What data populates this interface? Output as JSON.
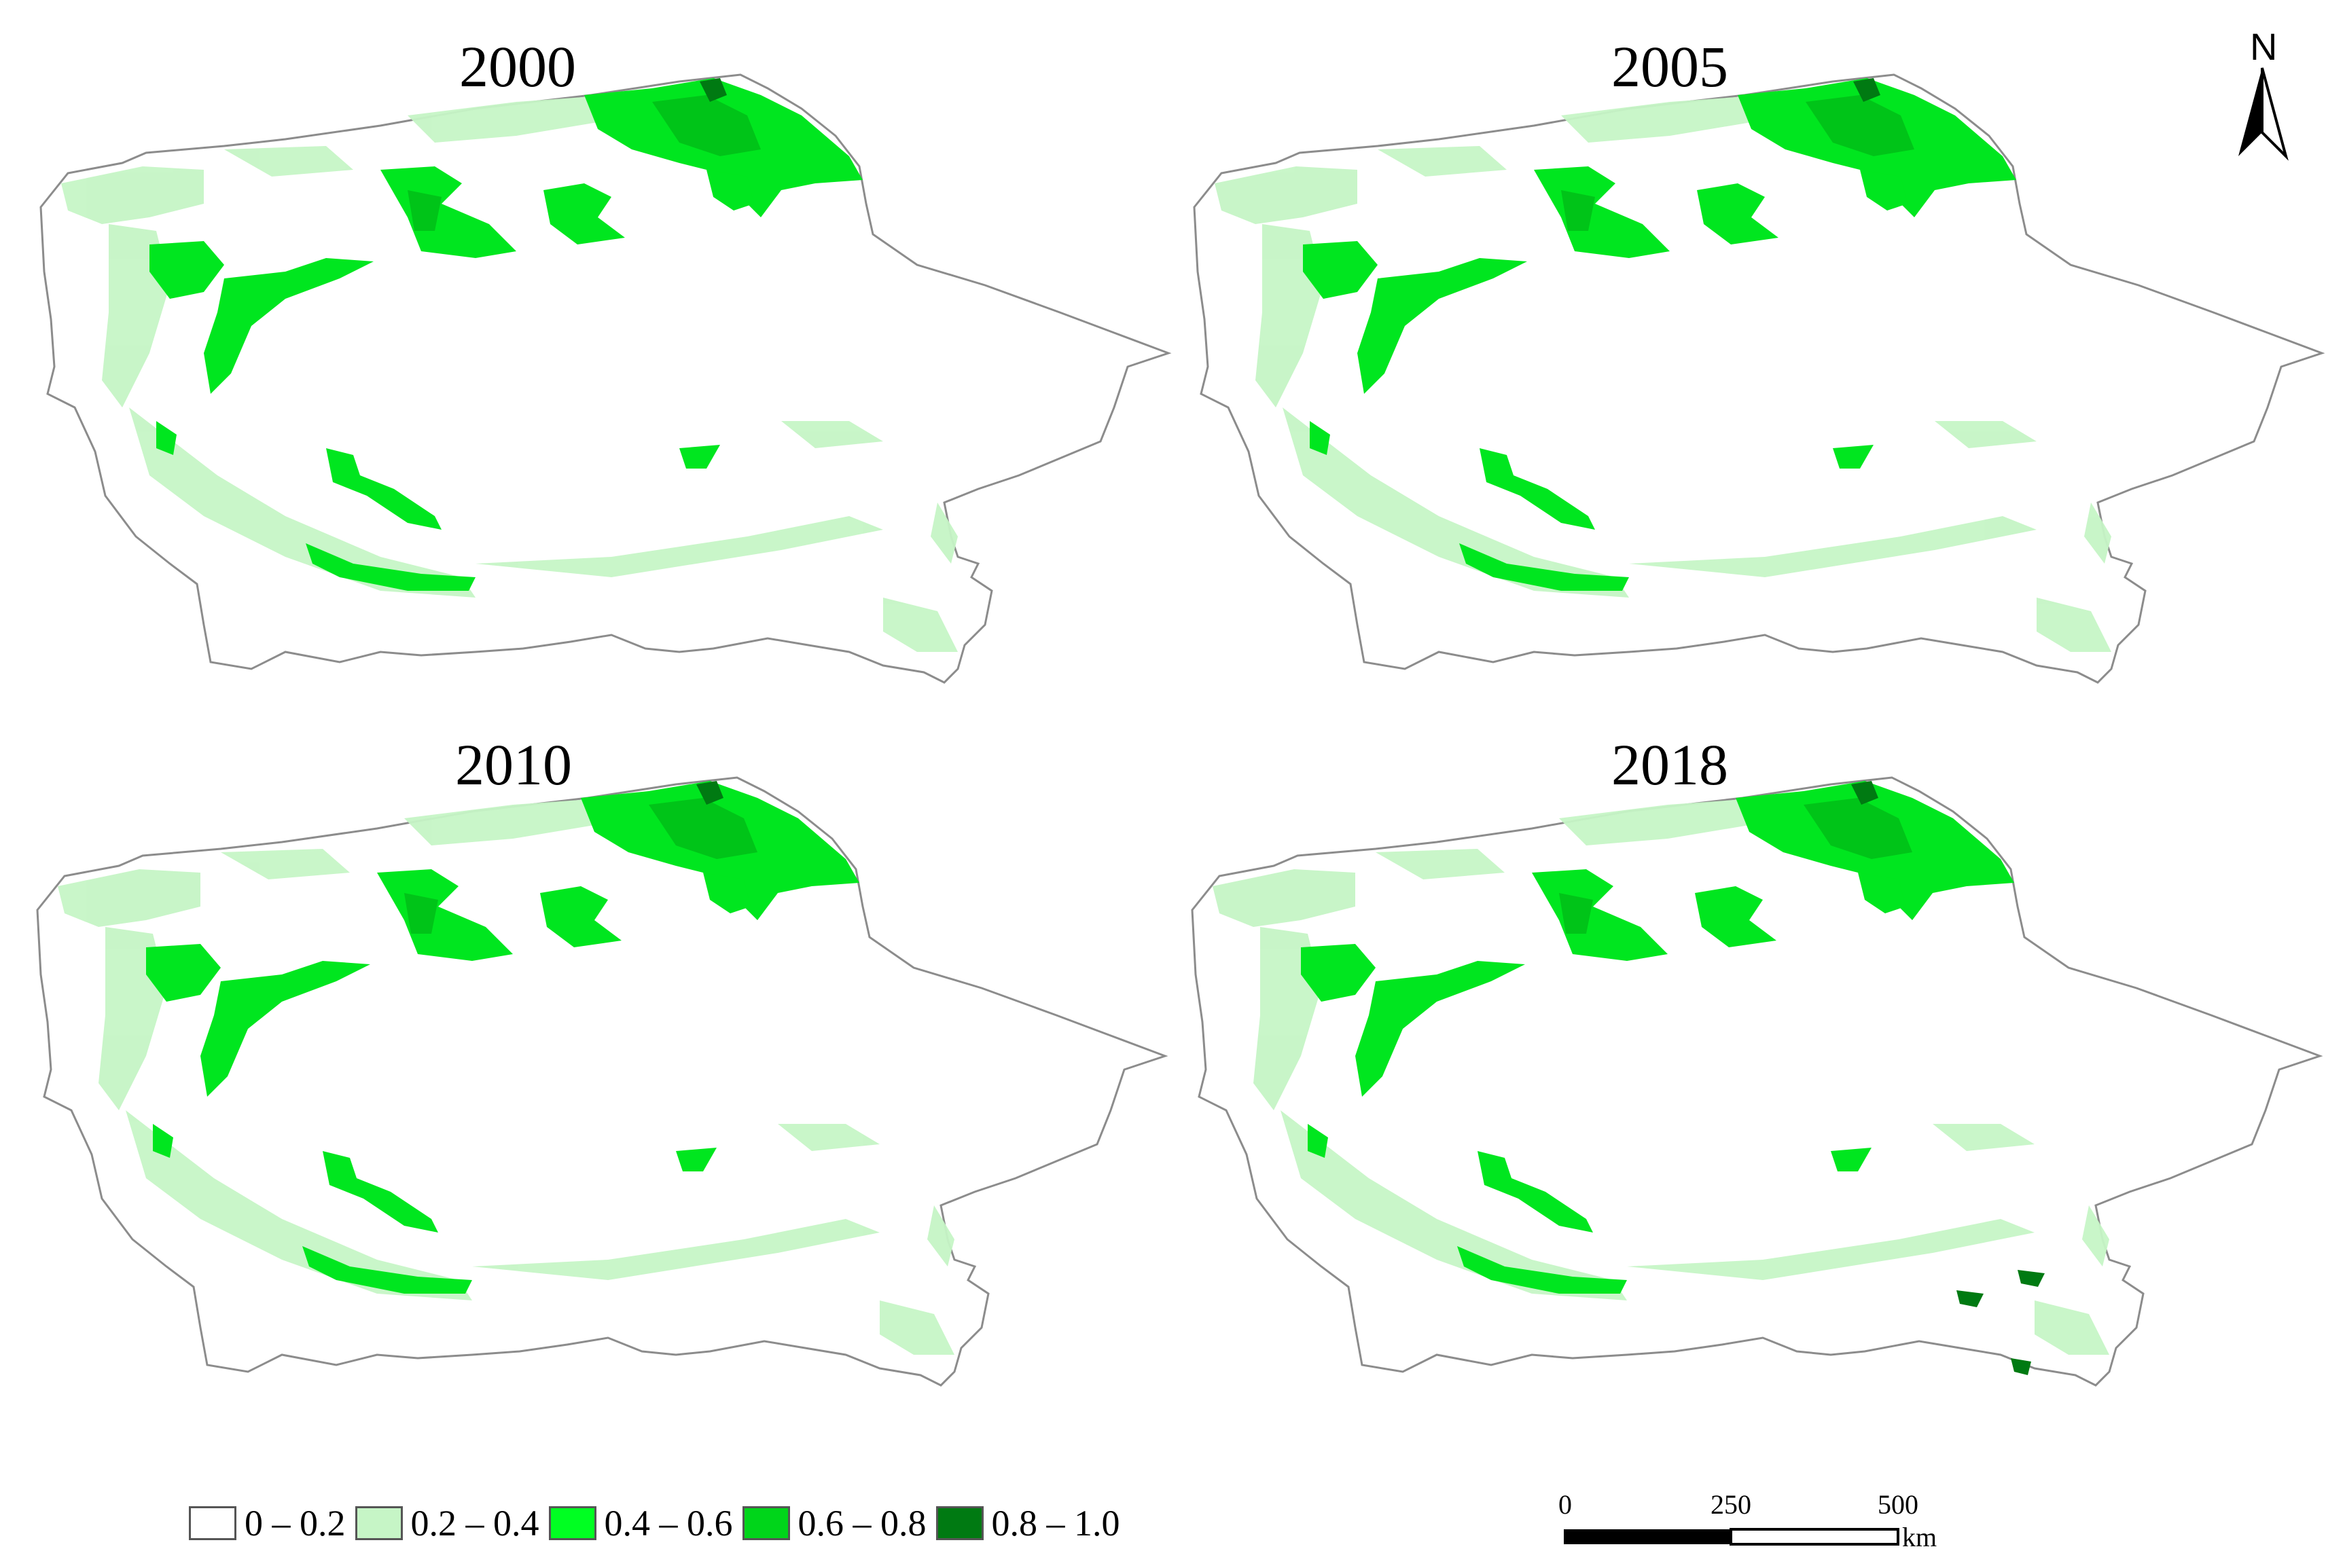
{
  "panels": [
    {
      "year": "2000"
    },
    {
      "year": "2005"
    },
    {
      "year": "2010"
    },
    {
      "year": "2018"
    }
  ],
  "legend": {
    "items": [
      {
        "label": "0 – 0.2",
        "color": "#ffffff"
      },
      {
        "label": "0.2 – 0.4",
        "color": "#c6f5c6"
      },
      {
        "label": "0.4 – 0.6",
        "color": "#00ff22"
      },
      {
        "label": "0.6 – 0.8",
        "color": "#00d51a"
      },
      {
        "label": "0.8 – 1.0",
        "color": "#007a12"
      }
    ]
  },
  "scale_bar": {
    "ticks": [
      "0",
      "250",
      "500"
    ],
    "unit": "km"
  },
  "north_arrow": {
    "label": "N",
    "icon": "north-arrow-icon"
  }
}
